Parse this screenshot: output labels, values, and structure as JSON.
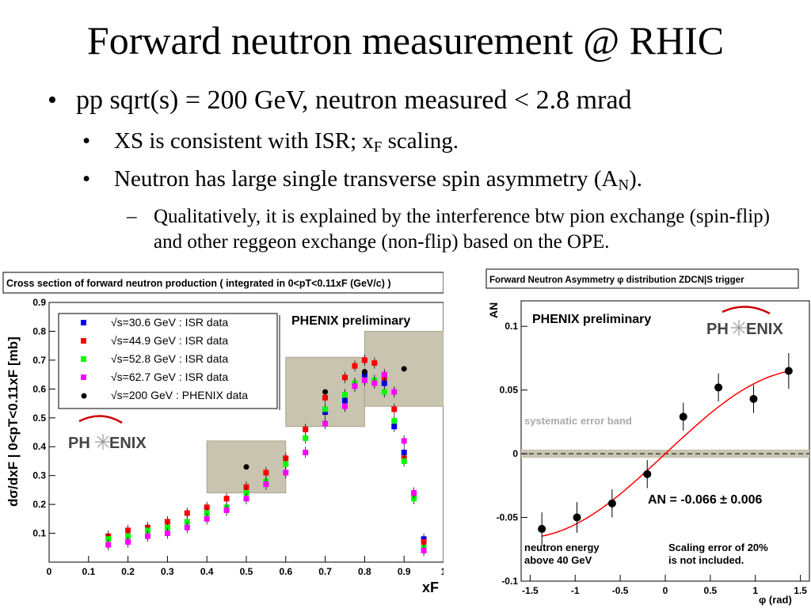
{
  "slide": {
    "title": "Forward neutron measurement @ RHIC",
    "bullet1": "pp sqrt(s) = 200 GeV, neutron measured < 2.8 mrad",
    "bullet2_pre": "XS is consistent with ISR; x",
    "bullet2_sub": "F",
    "bullet2_post": " scaling.",
    "bullet3_pre": "Neutron has large single transverse spin asymmetry (A",
    "bullet3_sub": "N",
    "bullet3_post": ").",
    "bullet4": "Qualitatively, it is explained by the interference btw pion exchange (spin-flip) and other reggeon exchange (non-flip) based on the OPE."
  },
  "logo_text": [
    "PH",
    "ENIX"
  ],
  "chart_data": [
    {
      "type": "scatter",
      "title": "Cross section of forward neutron production ( integrated in 0<pT<0.11xF (GeV/c) )",
      "xlabel": "xF",
      "ylabel": "dσ/dxF | 0<pT<0.11xF [mb]",
      "xlim": [
        0,
        1
      ],
      "ylim": [
        0,
        0.9
      ],
      "xticks": [
        "0",
        "0.1",
        "0.2",
        "0.3",
        "0.4",
        "0.5",
        "0.6",
        "0.7",
        "0.8",
        "0.9",
        "1"
      ],
      "yticks": [
        "0.1",
        "0.2",
        "0.3",
        "0.4",
        "0.5",
        "0.6",
        "0.7",
        "0.8",
        "0.9"
      ],
      "annotation": "PHENIX preliminary",
      "legend_position": "top-left",
      "syst_boxes": [
        {
          "x": [
            0.4,
            0.6
          ],
          "y": [
            0.24,
            0.42
          ]
        },
        {
          "x": [
            0.6,
            0.8
          ],
          "y": [
            0.47,
            0.71
          ]
        },
        {
          "x": [
            0.8,
            1.0
          ],
          "y": [
            0.54,
            0.8
          ]
        }
      ],
      "series": [
        {
          "name": "√s=30.6 GeV : ISR data",
          "color": "#0000ff",
          "marker": "square",
          "x": [
            0.7,
            0.75,
            0.8,
            0.85,
            0.875,
            0.9,
            0.95
          ],
          "y": [
            0.52,
            0.56,
            0.65,
            0.62,
            0.47,
            0.38,
            0.08
          ]
        },
        {
          "name": "√s=44.9 GeV : ISR data",
          "color": "#ff0000",
          "marker": "square",
          "x": [
            0.15,
            0.2,
            0.25,
            0.3,
            0.35,
            0.4,
            0.45,
            0.5,
            0.55,
            0.6,
            0.65,
            0.7,
            0.75,
            0.775,
            0.8,
            0.825,
            0.85,
            0.875,
            0.9,
            0.925,
            0.95
          ],
          "y": [
            0.09,
            0.11,
            0.12,
            0.14,
            0.17,
            0.19,
            0.22,
            0.26,
            0.31,
            0.36,
            0.46,
            0.57,
            0.64,
            0.68,
            0.7,
            0.69,
            0.64,
            0.53,
            0.36,
            0.23,
            0.07
          ]
        },
        {
          "name": "√s=52.8 GeV : ISR data",
          "color": "#00ff00",
          "marker": "square",
          "x": [
            0.15,
            0.2,
            0.25,
            0.3,
            0.35,
            0.4,
            0.45,
            0.5,
            0.55,
            0.6,
            0.65,
            0.7,
            0.75,
            0.775,
            0.8,
            0.825,
            0.85,
            0.875,
            0.9,
            0.925,
            0.95
          ],
          "y": [
            0.08,
            0.09,
            0.11,
            0.12,
            0.14,
            0.17,
            0.19,
            0.24,
            0.28,
            0.34,
            0.43,
            0.53,
            0.58,
            0.62,
            0.63,
            0.63,
            0.59,
            0.49,
            0.35,
            0.22,
            0.05
          ]
        },
        {
          "name": "√s=62.7 GeV : ISR data",
          "color": "#ff00ff",
          "marker": "square",
          "x": [
            0.15,
            0.2,
            0.25,
            0.3,
            0.35,
            0.4,
            0.45,
            0.5,
            0.55,
            0.6,
            0.65,
            0.7,
            0.75,
            0.775,
            0.8,
            0.825,
            0.85,
            0.875,
            0.9,
            0.925,
            0.95
          ],
          "y": [
            0.06,
            0.07,
            0.09,
            0.1,
            0.12,
            0.15,
            0.18,
            0.22,
            0.27,
            0.31,
            0.38,
            0.48,
            0.54,
            0.61,
            0.63,
            0.62,
            0.65,
            0.59,
            0.42,
            0.24,
            0.04
          ]
        },
        {
          "name": "√s=200 GeV : PHENIX data",
          "color": "#000000",
          "marker": "circle",
          "x": [
            0.5,
            0.7,
            0.8,
            0.9
          ],
          "y": [
            0.33,
            0.59,
            0.66,
            0.67
          ]
        }
      ]
    },
    {
      "type": "scatter",
      "title": "Forward Neutron Asymmetry φ distribution ZDCN|S trigger",
      "xlabel": "φ (rad)",
      "ylabel": "AN",
      "xlim": [
        -1.6,
        1.6
      ],
      "ylim": [
        -0.1,
        0.12
      ],
      "xticks": [
        "-1.5",
        "-1",
        "-0.5",
        "0",
        "0.5",
        "1",
        "1.5"
      ],
      "yticks": [
        "-0.1",
        "-0.05",
        "0",
        "0.05",
        "0.1"
      ],
      "annotations": {
        "preliminary": "PHENIX preliminary",
        "band": "systematic error band",
        "result": "AN = -0.066 ± 0.006",
        "energy_1": "neutron energy",
        "energy_2": "above 40 GeV",
        "scaling_1": "Scaling error of 20%",
        "scaling_2": "is not included."
      },
      "points": {
        "x": [
          -1.37,
          -0.98,
          -0.59,
          -0.2,
          0.2,
          0.59,
          0.98,
          1.37
        ],
        "y": [
          -0.059,
          -0.05,
          -0.039,
          -0.016,
          0.029,
          0.052,
          0.043,
          0.065
        ],
        "err": [
          0.013,
          0.012,
          0.011,
          0.011,
          0.011,
          0.011,
          0.011,
          0.014
        ]
      },
      "fit": {
        "amplitude": 0.066,
        "form": "A·sin(φ)",
        "color": "#ff0000"
      },
      "band_y": [
        -0.002,
        0.002
      ]
    }
  ]
}
